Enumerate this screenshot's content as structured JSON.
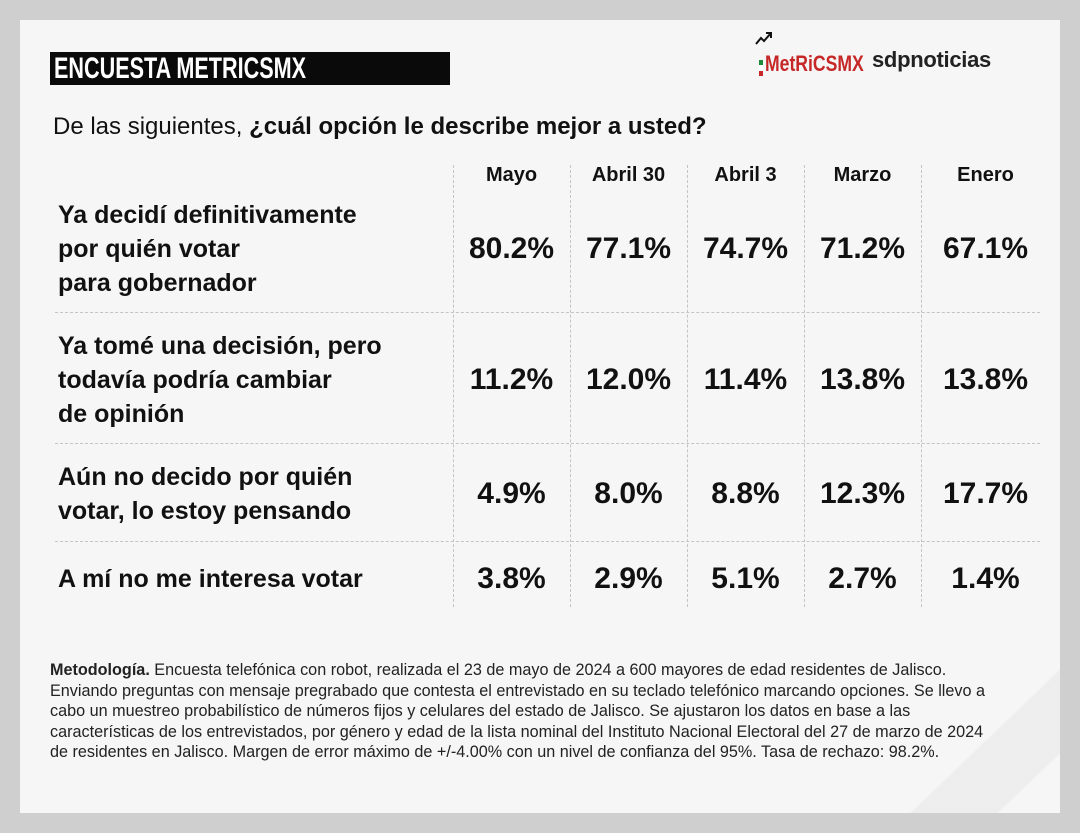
{
  "header": {
    "title": "ENCUESTA METRICSMX",
    "logo_metrics": "MetRiCSMX",
    "logo_sdp": "sdpnoticias",
    "flag_colors": [
      "#1e8a3a",
      "#ffffff",
      "#c62828"
    ]
  },
  "question": {
    "prefix": "De las siguientes, ",
    "bold": "¿cuál opción le describe mejor a usted?"
  },
  "chart_data": {
    "type": "table",
    "title": "De las siguientes, ¿cuál opción le describe mejor a usted?",
    "columns": [
      "Mayo",
      "Abril 30",
      "Abril 3",
      "Marzo",
      "Enero"
    ],
    "rows": [
      {
        "label_lines": [
          "Ya decidí definitivamente",
          "por quién votar",
          "para gobernador"
        ],
        "values": [
          "80.2%",
          "77.1%",
          "74.7%",
          "71.2%",
          "67.1%"
        ]
      },
      {
        "label_lines": [
          "Ya tomé una decisión, pero",
          "todavía podría cambiar",
          "de opinión"
        ],
        "values": [
          "11.2%",
          "12.0%",
          "11.4%",
          "13.8%",
          "13.8%"
        ]
      },
      {
        "label_lines": [
          "Aún no decido por quién",
          "votar, lo estoy pensando"
        ],
        "values": [
          "4.9%",
          "8.0%",
          "8.8%",
          "12.3%",
          "17.7%"
        ]
      },
      {
        "label_lines": [
          "A mí no me interesa votar"
        ],
        "values": [
          "3.8%",
          "2.9%",
          "5.1%",
          "2.7%",
          "1.4%"
        ]
      }
    ]
  },
  "methodology": {
    "label": "Metodología.",
    "text": " Encuesta telefónica con robot, realizada el 23 de mayo de 2024 a 600 mayores de edad residentes de Jalisco. Enviando preguntas con mensaje pregrabado que contesta el entrevistado en su teclado telefónico marcando opciones. Se llevo a cabo un muestreo probabilístico de números fijos y celulares del estado de Jalisco. Se ajustaron los datos en base a las características de los entrevistados, por género y edad de la lista nominal del Instituto Nacional Electoral del 27 de marzo de 2024 de residentes en Jalisco. Margen de error máximo de +/-4.00% con un nivel de confianza del 95%. Tasa de rechazo: 98.2%."
  }
}
